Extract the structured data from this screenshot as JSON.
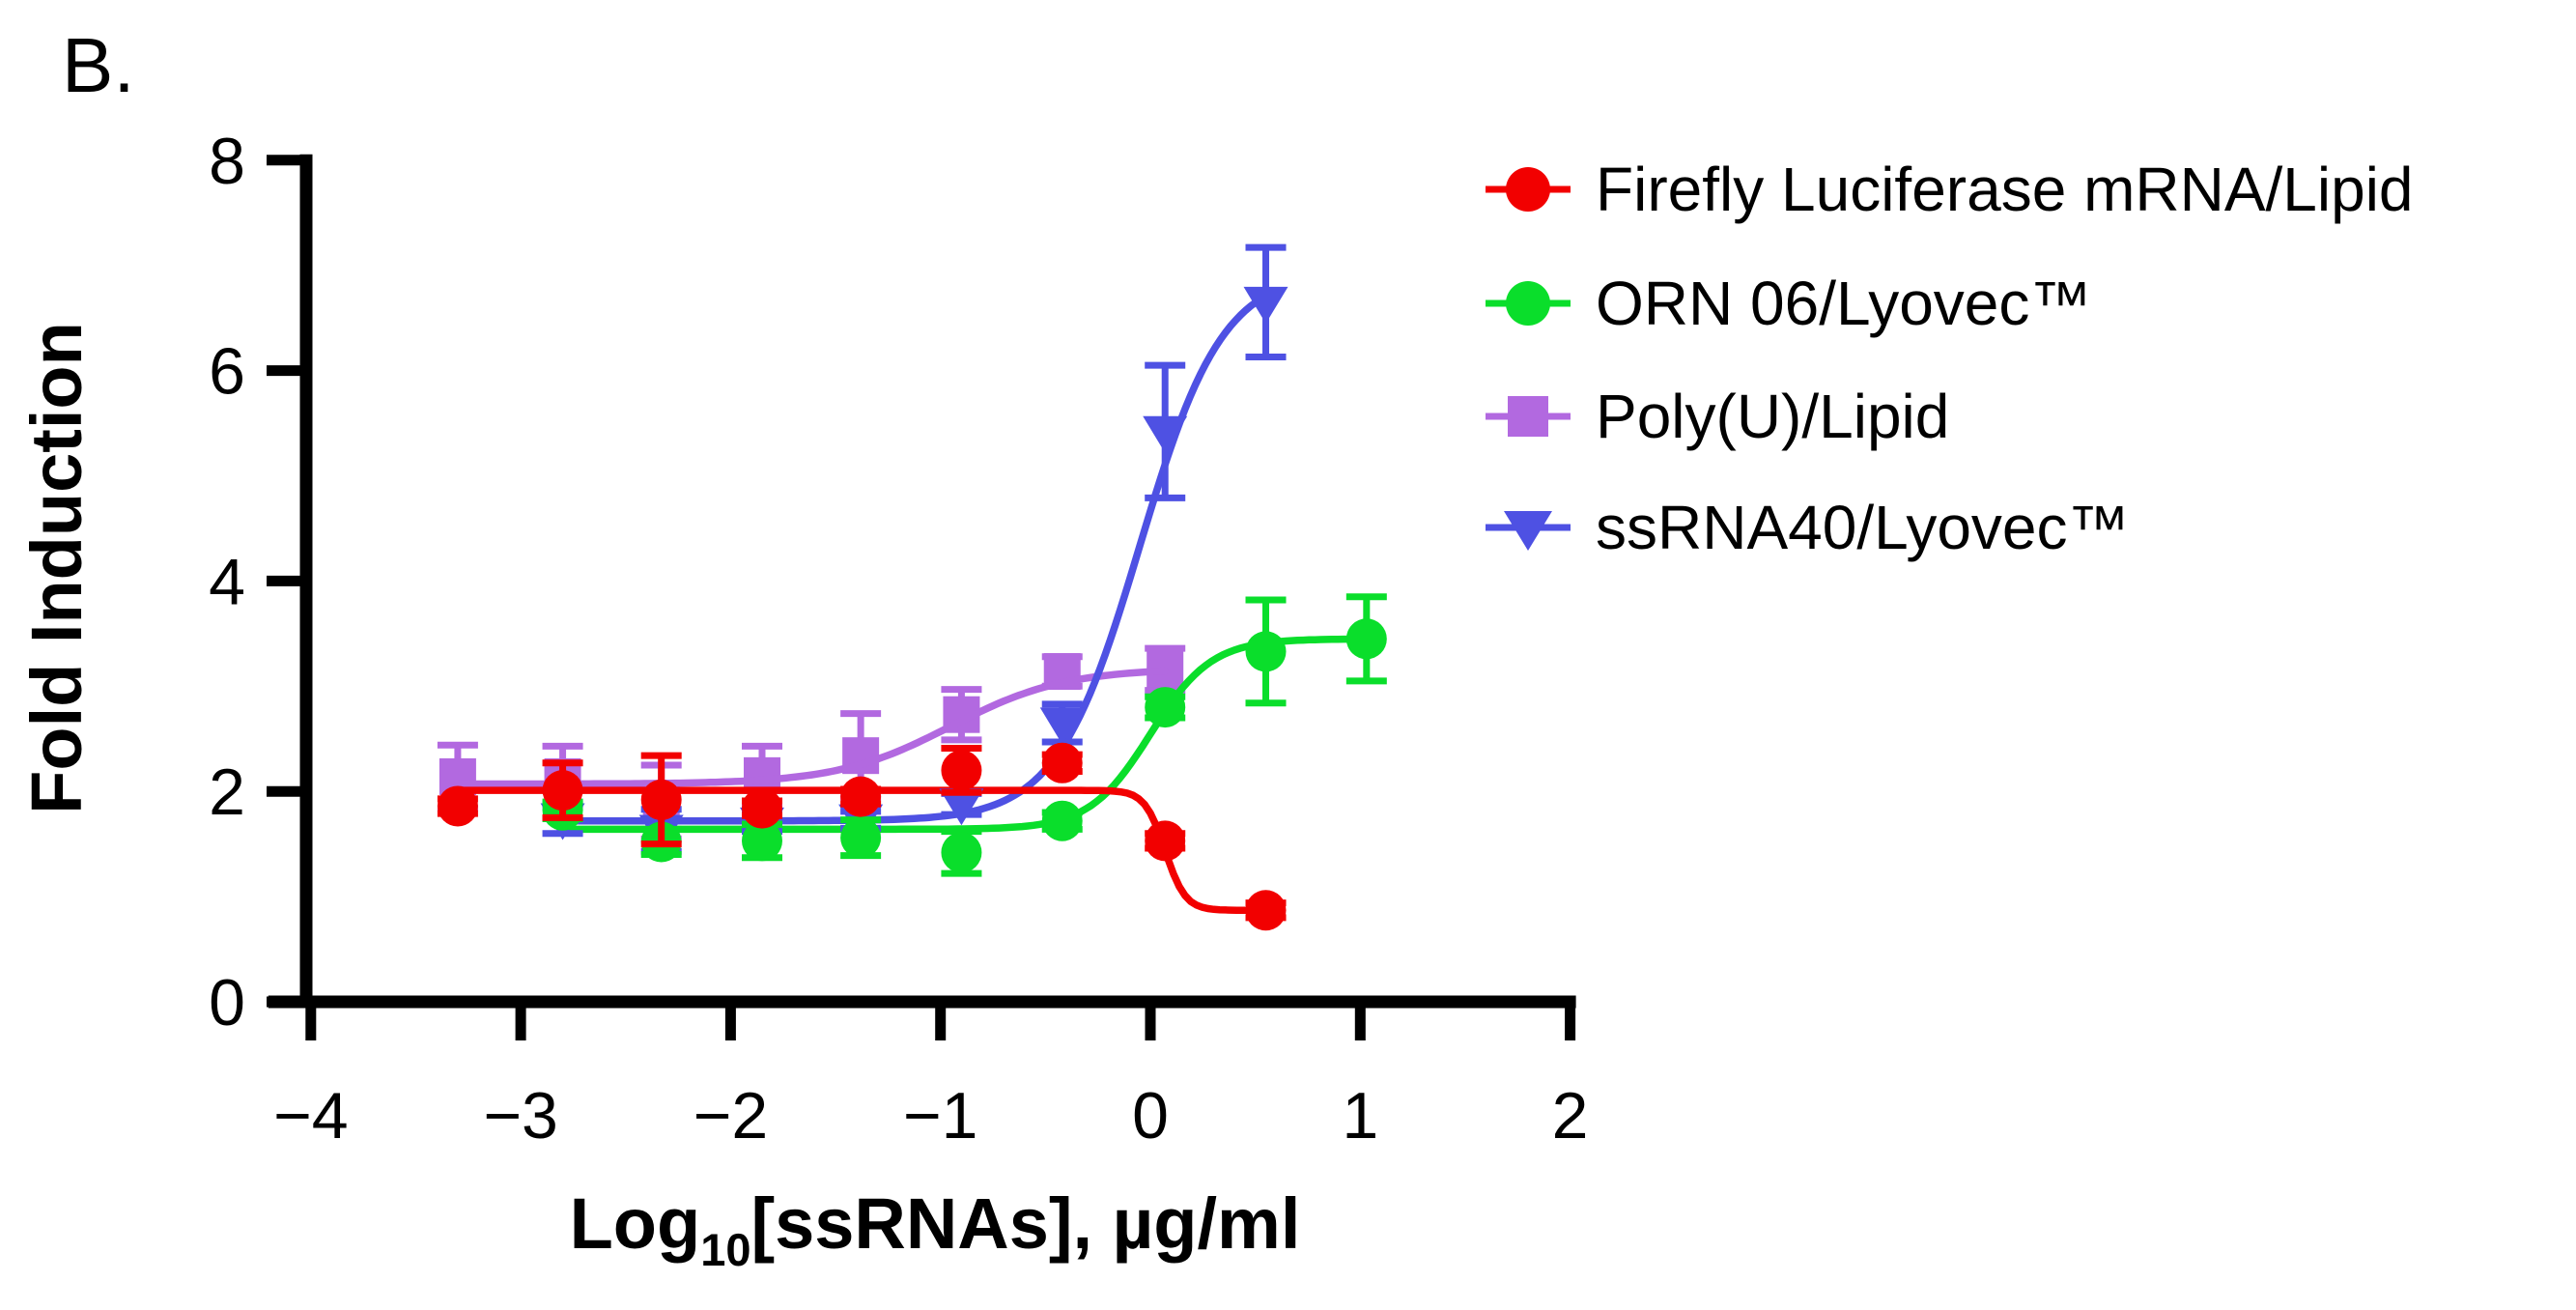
{
  "panel_label": "B.",
  "colors": {
    "red": "#F20000",
    "green": "#0ADE2B",
    "purple": "#B269E0",
    "blue": "#4E51E3",
    "axis": "#000000",
    "background": "#FFFFFF"
  },
  "axes": {
    "ylabel": "Fold Induction",
    "xlabel_full": "Log10[ssRNAs], µg/ml",
    "xlabel_prefix": "Log",
    "xlabel_sub": "10",
    "xlabel_suffix": "[ssRNAs], µg/ml",
    "x_ticks": [
      -4,
      -3,
      -2,
      -1,
      0,
      1,
      2
    ],
    "x_tick_labels": [
      "−4",
      "−3",
      "−2",
      "−1",
      "0",
      "1",
      "2"
    ],
    "y_ticks": [
      0,
      2,
      4,
      6,
      8
    ],
    "y_tick_labels": [
      "0",
      "2",
      "4",
      "6",
      "8"
    ],
    "xlim": [
      -4,
      2
    ],
    "ylim": [
      0,
      8
    ],
    "grid": false
  },
  "legend": {
    "position": "right-outside-top",
    "items": [
      {
        "key": "firefly",
        "label": "Firefly Luciferase mRNA/Lipid",
        "marker": "circle",
        "color": "#F20000"
      },
      {
        "key": "orn06",
        "label": "ORN 06/Lyovec™",
        "marker": "circle",
        "color": "#0ADE2B"
      },
      {
        "key": "polyu",
        "label": "Poly(U)/Lipid",
        "marker": "square",
        "color": "#B269E0"
      },
      {
        "key": "ssrna40",
        "label": "ssRNA40/Lyovec™",
        "marker": "triangle-down",
        "color": "#4E51E3"
      }
    ]
  },
  "chart_data": {
    "type": "scatter",
    "title": "",
    "xlabel": "Log10[ssRNAs], µg/ml",
    "ylabel": "Fold Induction",
    "xlim": [
      -4,
      2
    ],
    "ylim": [
      0,
      8
    ],
    "grid": false,
    "legend_position": "upper right outside",
    "draw_order": [
      "polyu",
      "ssrna40",
      "orn06",
      "firefly"
    ],
    "series": [
      {
        "key": "firefly",
        "name": "Firefly Luciferase mRNA/Lipid",
        "marker": "circle",
        "color": "#F20000",
        "x": [
          -3.3,
          -2.8,
          -2.33,
          -1.85,
          -1.38,
          -0.9,
          -0.42,
          0.07,
          0.55
        ],
        "y": [
          1.86,
          2.01,
          1.92,
          1.84,
          1.95,
          2.2,
          2.27,
          1.53,
          0.87
        ],
        "yerr": [
          0.07,
          0.26,
          0.42,
          0.07,
          0.07,
          0.21,
          0.08,
          0.07,
          0.07
        ],
        "fit": {
          "left_plateau": 2.01,
          "right_plateau": 0.87,
          "hill": 9.0,
          "mid": 0.07,
          "range": [
            -3.3,
            0.55
          ]
        }
      },
      {
        "key": "orn06",
        "name": "ORN 06/Lyovec™",
        "marker": "circle",
        "color": "#0ADE2B",
        "x": [
          -2.8,
          -2.33,
          -1.85,
          -1.38,
          -0.9,
          -0.42,
          0.07,
          0.55,
          1.03
        ],
        "y": [
          1.82,
          1.52,
          1.53,
          1.56,
          1.42,
          1.72,
          2.8,
          3.33,
          3.45
        ],
        "yerr": [
          0.08,
          0.12,
          0.16,
          0.17,
          0.2,
          0.08,
          0.1,
          0.49,
          0.4
        ],
        "fit": {
          "left_plateau": 1.64,
          "right_plateau": 3.45,
          "hill": 3.0,
          "mid": 0.0,
          "range": [
            -2.8,
            1.03
          ]
        }
      },
      {
        "key": "polyu",
        "name": "Poly(U)/Lipid",
        "marker": "square",
        "color": "#B269E0",
        "x": [
          -3.3,
          -2.8,
          -2.33,
          -1.85,
          -1.38,
          -0.9,
          -0.42,
          0.07
        ],
        "y": [
          2.14,
          2.14,
          1.9,
          2.15,
          2.34,
          2.73,
          3.14,
          3.16
        ],
        "yerr": [
          0.3,
          0.29,
          0.35,
          0.28,
          0.4,
          0.24,
          0.14,
          0.2
        ],
        "fit": {
          "left_plateau": 2.07,
          "right_plateau": 3.17,
          "hill": 1.6,
          "mid": -0.95,
          "range": [
            -3.3,
            0.07
          ]
        }
      },
      {
        "key": "ssrna40",
        "name": "ssRNA40/Lyovec™",
        "marker": "triangle-down",
        "color": "#4E51E3",
        "x": [
          -2.8,
          -2.33,
          -1.85,
          -1.38,
          -0.9,
          -0.42,
          0.07,
          0.55
        ],
        "y": [
          1.74,
          1.63,
          1.7,
          1.73,
          1.88,
          2.65,
          5.42,
          6.65
        ],
        "yerr": [
          0.14,
          0.2,
          0.08,
          0.08,
          0.1,
          0.18,
          0.63,
          0.52
        ],
        "fit": {
          "left_plateau": 1.72,
          "right_plateau": 6.95,
          "hill": 2.2,
          "mid": -0.05,
          "range": [
            -2.8,
            0.55
          ]
        }
      }
    ]
  }
}
